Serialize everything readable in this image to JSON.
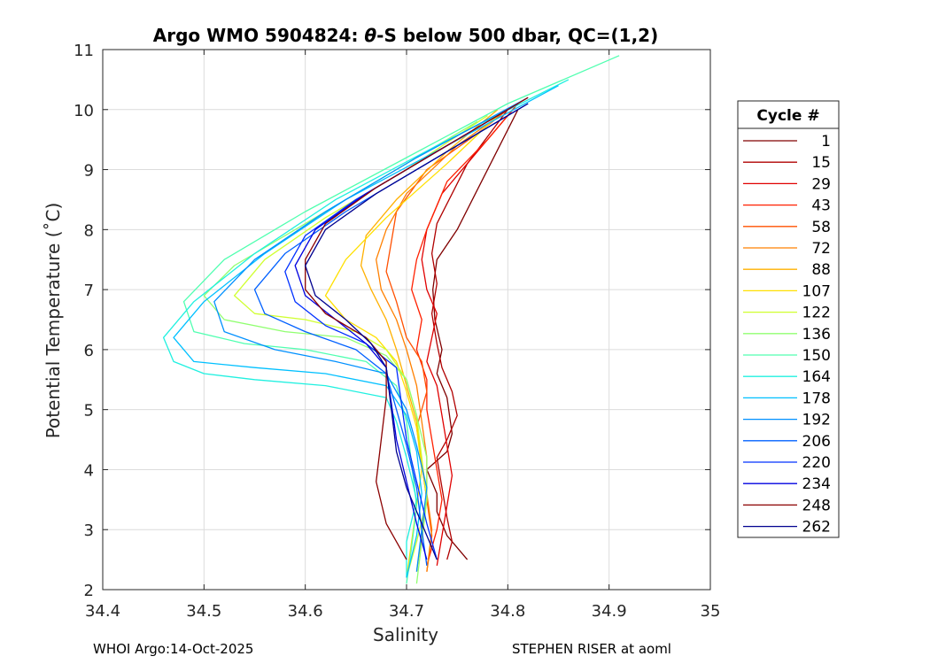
{
  "chart_data": {
    "type": "line",
    "title": "Argo WMO 5904824: θ-S below 500 dbar,  QC=(1,2)",
    "title_parts": [
      "Argo WMO 5904824: ",
      "θ",
      "-S below 500 dbar,  QC=(1,2)"
    ],
    "xlabel": "Salinity",
    "ylabel": "Potential Temperature (˚C)",
    "xlim": [
      34.4,
      35
    ],
    "ylim": [
      2,
      11
    ],
    "x_ticks": [
      34.4,
      34.5,
      34.6,
      34.7,
      34.8,
      34.9,
      35
    ],
    "x_tick_labels": [
      "34.4",
      "34.5",
      "34.6",
      "34.7",
      "34.8",
      "34.9",
      "35"
    ],
    "y_ticks": [
      2,
      3,
      4,
      5,
      6,
      7,
      8,
      9,
      10,
      11
    ],
    "y_tick_labels": [
      "2",
      "3",
      "4",
      "5",
      "6",
      "7",
      "8",
      "9",
      "10",
      "11"
    ],
    "grid": true,
    "legend_placement": "outside-right",
    "legend_title": "Cycle #",
    "legend_entries": [
      "1",
      "15",
      "29",
      "43",
      "58",
      "72",
      "88",
      "107",
      "122",
      "136",
      "150",
      "164",
      "178",
      "192",
      "206",
      "220",
      "234",
      "248",
      "262"
    ],
    "legend_colors": [
      "#800000",
      "#b00000",
      "#e00000",
      "#ff2000",
      "#ff5000",
      "#ff8000",
      "#ffb000",
      "#ffe000",
      "#d0ff30",
      "#90ff70",
      "#50ffb0",
      "#20f0e0",
      "#00c0ff",
      "#0090ff",
      "#0060ff",
      "#0030ff",
      "#0000e0",
      "#8b0000",
      "#00008f"
    ],
    "series": [
      {
        "cycle": "1",
        "color": "#800000",
        "x": [
          34.76,
          34.74,
          34.73,
          34.73,
          34.72,
          34.74,
          34.745,
          34.74,
          34.73,
          34.735,
          34.728,
          34.726,
          34.73,
          34.75,
          34.78,
          34.81
        ],
        "y": [
          2.5,
          2.9,
          3.3,
          3.6,
          4.0,
          4.3,
          4.6,
          5.2,
          5.6,
          6.0,
          6.5,
          7.0,
          7.5,
          8.0,
          9.0,
          10.0
        ]
      },
      {
        "cycle": "15",
        "color": "#b00000",
        "x": [
          34.74,
          34.745,
          34.74,
          34.735,
          34.73,
          34.74,
          34.75,
          34.745,
          34.735,
          34.73,
          34.725,
          34.73,
          34.725,
          34.73,
          34.76,
          34.8
        ],
        "y": [
          2.5,
          2.8,
          3.2,
          3.7,
          4.2,
          4.5,
          4.9,
          5.3,
          5.7,
          6.1,
          6.6,
          7.1,
          7.6,
          8.1,
          9.1,
          10.0
        ]
      },
      {
        "cycle": "29",
        "color": "#e00000",
        "x": [
          34.73,
          34.735,
          34.74,
          34.745,
          34.74,
          34.735,
          34.73,
          34.72,
          34.725,
          34.73,
          34.72,
          34.715,
          34.72,
          34.735,
          34.77,
          34.81
        ],
        "y": [
          2.4,
          2.9,
          3.4,
          3.9,
          4.4,
          4.9,
          5.4,
          5.8,
          6.2,
          6.6,
          7.0,
          7.5,
          8.0,
          8.6,
          9.3,
          10.1
        ]
      },
      {
        "cycle": "43",
        "color": "#ff2000",
        "x": [
          34.72,
          34.73,
          34.735,
          34.73,
          34.725,
          34.72,
          34.72,
          34.71,
          34.715,
          34.705,
          34.71,
          34.72,
          34.74,
          34.78,
          34.81
        ],
        "y": [
          2.4,
          3.0,
          3.5,
          4.0,
          4.5,
          5.0,
          5.5,
          6.0,
          6.5,
          7.0,
          7.5,
          8.0,
          8.8,
          9.5,
          10.1
        ]
      },
      {
        "cycle": "58",
        "color": "#ff5000",
        "x": [
          34.72,
          34.725,
          34.72,
          34.715,
          34.71,
          34.72,
          34.715,
          34.7,
          34.69,
          34.68,
          34.685,
          34.69,
          34.72,
          34.77,
          34.8
        ],
        "y": [
          2.3,
          2.9,
          3.5,
          4.1,
          4.7,
          5.3,
          5.8,
          6.2,
          6.8,
          7.3,
          7.8,
          8.3,
          9.0,
          9.6,
          10.0
        ]
      },
      {
        "cycle": "72",
        "color": "#ff8000",
        "x": [
          34.72,
          34.725,
          34.72,
          34.72,
          34.715,
          34.71,
          34.7,
          34.69,
          34.675,
          34.67,
          34.68,
          34.7,
          34.75,
          34.8
        ],
        "y": [
          2.3,
          3.0,
          3.6,
          4.2,
          4.8,
          5.4,
          6.0,
          6.5,
          7.0,
          7.5,
          8.0,
          8.6,
          9.4,
          10.0
        ]
      },
      {
        "cycle": "88",
        "color": "#ffb000",
        "x": [
          34.71,
          34.715,
          34.72,
          34.715,
          34.71,
          34.7,
          34.69,
          34.68,
          34.665,
          34.655,
          34.66,
          34.69,
          34.74,
          34.79
        ],
        "y": [
          2.3,
          2.9,
          3.5,
          4.1,
          4.8,
          5.4,
          6.0,
          6.5,
          7.0,
          7.4,
          7.9,
          8.5,
          9.3,
          10.0
        ]
      },
      {
        "cycle": "107",
        "color": "#ffe000",
        "x": [
          34.7,
          34.705,
          34.71,
          34.715,
          34.71,
          34.7,
          34.69,
          34.67,
          34.64,
          34.62,
          34.64,
          34.68,
          34.74,
          34.79
        ],
        "y": [
          2.2,
          2.8,
          3.4,
          4.0,
          4.7,
          5.3,
          5.8,
          6.2,
          6.5,
          6.9,
          7.5,
          8.2,
          9.1,
          9.9
        ]
      },
      {
        "cycle": "122",
        "color": "#d0ff30",
        "x": [
          34.7,
          34.71,
          34.72,
          34.715,
          34.71,
          34.7,
          34.68,
          34.65,
          34.6,
          34.55,
          34.53,
          34.56,
          34.62,
          34.7,
          34.78
        ],
        "y": [
          2.2,
          2.8,
          3.5,
          4.2,
          4.9,
          5.5,
          6.0,
          6.3,
          6.5,
          6.6,
          6.9,
          7.5,
          8.2,
          9.0,
          9.9
        ]
      },
      {
        "cycle": "136",
        "color": "#90ff70",
        "x": [
          34.71,
          34.715,
          34.72,
          34.72,
          34.71,
          34.7,
          34.68,
          34.64,
          34.58,
          34.52,
          34.5,
          34.53,
          34.6,
          34.68,
          34.77
        ],
        "y": [
          2.1,
          2.8,
          3.5,
          4.2,
          4.9,
          5.5,
          5.9,
          6.2,
          6.3,
          6.5,
          6.9,
          7.4,
          8.1,
          8.9,
          9.8
        ]
      },
      {
        "cycle": "150",
        "color": "#50ffb0",
        "x": [
          34.7,
          34.705,
          34.71,
          34.705,
          34.7,
          34.69,
          34.66,
          34.6,
          34.54,
          34.49,
          34.48,
          34.52,
          34.6,
          34.7,
          34.8,
          34.91
        ],
        "y": [
          2.1,
          2.7,
          3.4,
          4.1,
          4.8,
          5.4,
          5.8,
          6.0,
          6.1,
          6.3,
          6.8,
          7.5,
          8.3,
          9.2,
          10.1,
          10.9
        ]
      },
      {
        "cycle": "164",
        "color": "#20f0e0",
        "x": [
          34.7,
          34.7,
          34.71,
          34.7,
          34.69,
          34.68,
          34.62,
          34.55,
          34.5,
          34.47,
          34.46,
          34.49,
          34.55,
          34.63,
          34.73,
          34.86
        ],
        "y": [
          2.2,
          2.8,
          3.5,
          4.2,
          4.8,
          5.2,
          5.4,
          5.5,
          5.6,
          5.8,
          6.2,
          6.8,
          7.6,
          8.5,
          9.4,
          10.5
        ]
      },
      {
        "cycle": "178",
        "color": "#00c0ff",
        "x": [
          34.7,
          34.71,
          34.715,
          34.71,
          34.7,
          34.68,
          34.62,
          34.55,
          34.49,
          34.47,
          34.5,
          34.56,
          34.64,
          34.74,
          34.85
        ],
        "y": [
          2.2,
          2.9,
          3.6,
          4.3,
          4.9,
          5.4,
          5.6,
          5.7,
          5.8,
          6.2,
          6.8,
          7.6,
          8.5,
          9.4,
          10.4
        ]
      },
      {
        "cycle": "192",
        "color": "#0090ff",
        "x": [
          34.71,
          34.715,
          34.72,
          34.71,
          34.7,
          34.68,
          34.63,
          34.57,
          34.52,
          34.51,
          34.55,
          34.62,
          34.71,
          34.82
        ],
        "y": [
          2.3,
          3.0,
          3.7,
          4.4,
          5.0,
          5.6,
          5.8,
          6.0,
          6.3,
          6.8,
          7.5,
          8.3,
          9.2,
          10.2
        ]
      },
      {
        "cycle": "206",
        "color": "#0060ff",
        "x": [
          34.72,
          34.715,
          34.71,
          34.7,
          34.69,
          34.68,
          34.65,
          34.6,
          34.56,
          34.55,
          34.58,
          34.64,
          34.72,
          34.82
        ],
        "y": [
          2.4,
          3.0,
          3.7,
          4.4,
          5.0,
          5.6,
          6.0,
          6.3,
          6.6,
          7.0,
          7.6,
          8.3,
          9.1,
          10.1
        ]
      },
      {
        "cycle": "220",
        "color": "#0030ff",
        "x": [
          34.73,
          34.72,
          34.71,
          34.7,
          34.695,
          34.69,
          34.66,
          34.62,
          34.59,
          34.58,
          34.6,
          34.65,
          34.72,
          34.81
        ],
        "y": [
          2.5,
          3.1,
          3.8,
          4.5,
          5.1,
          5.7,
          6.1,
          6.4,
          6.8,
          7.3,
          7.9,
          8.5,
          9.2,
          10.1
        ]
      },
      {
        "cycle": "234",
        "color": "#0000e0",
        "x": [
          34.72,
          34.71,
          34.7,
          34.69,
          34.685,
          34.68,
          34.66,
          34.63,
          34.6,
          34.59,
          34.61,
          34.66,
          34.73,
          34.81
        ],
        "y": [
          2.5,
          3.1,
          3.8,
          4.5,
          5.1,
          5.7,
          6.1,
          6.5,
          6.9,
          7.4,
          8.0,
          8.6,
          9.3,
          10.1
        ]
      },
      {
        "cycle": "248",
        "color": "#8b0000",
        "x": [
          34.7,
          34.68,
          34.67,
          34.675,
          34.68,
          34.68,
          34.66,
          34.62,
          34.6,
          34.6,
          34.62,
          34.67,
          34.74,
          34.82
        ],
        "y": [
          2.5,
          3.1,
          3.8,
          4.5,
          5.2,
          5.8,
          6.2,
          6.6,
          7.0,
          7.5,
          8.1,
          8.7,
          9.4,
          10.2
        ]
      },
      {
        "cycle": "262",
        "color": "#00008f",
        "x": [
          34.73,
          34.715,
          34.7,
          34.69,
          34.685,
          34.68,
          34.665,
          34.64,
          34.61,
          34.6,
          34.62,
          34.67,
          34.74,
          34.82
        ],
        "y": [
          2.5,
          3.1,
          3.7,
          4.3,
          5.0,
          5.7,
          6.1,
          6.5,
          6.9,
          7.4,
          8.0,
          8.6,
          9.3,
          10.1
        ]
      }
    ]
  },
  "footer": {
    "left": "WHOI Argo:14-Oct-2025",
    "right": "STEPHEN RISER at aoml"
  }
}
